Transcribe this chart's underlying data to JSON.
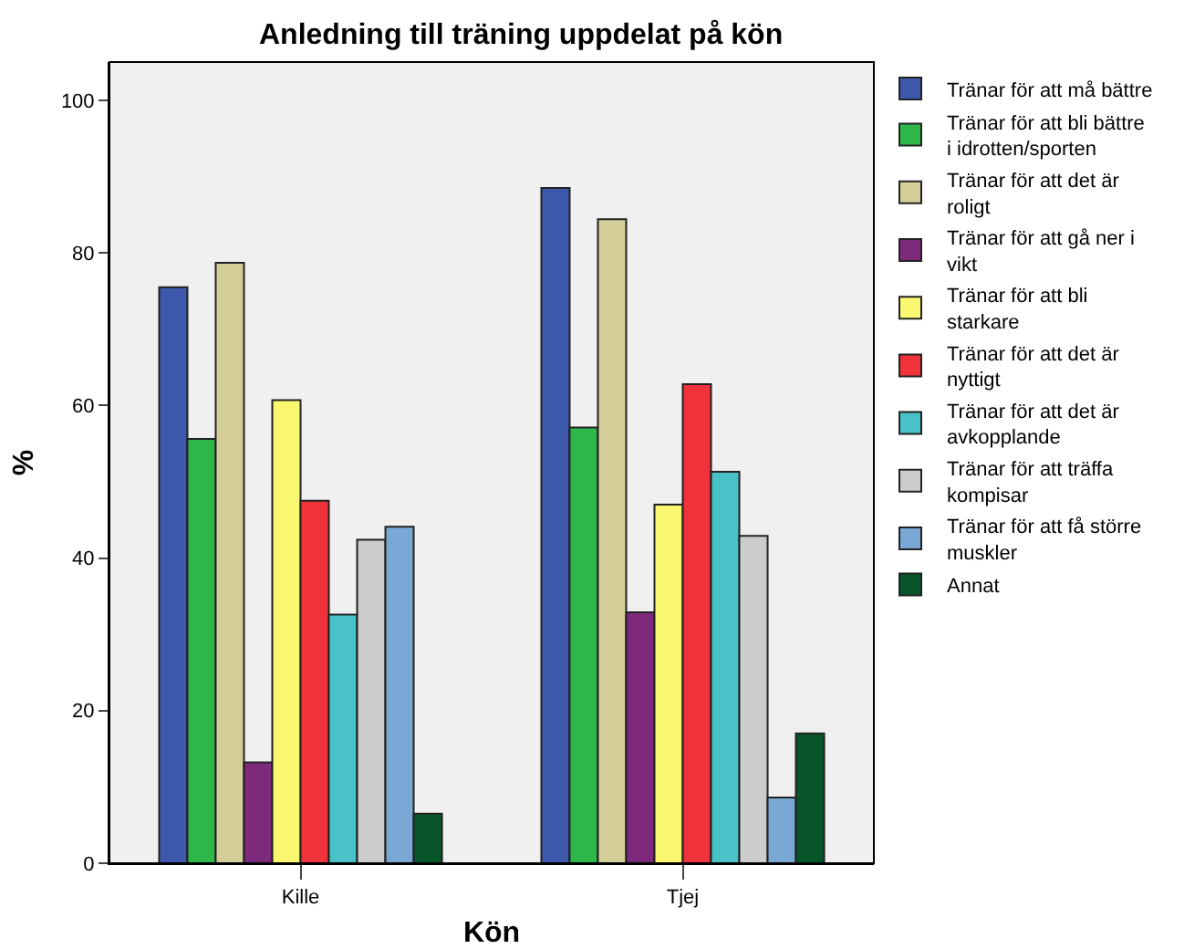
{
  "chart_data": {
    "type": "bar",
    "title": "Anledning till träning uppdelat på kön",
    "xlabel": "Kön",
    "ylabel": "%",
    "categories": [
      "Kille",
      "Tjej"
    ],
    "ylim": [
      0,
      105
    ],
    "yticks": [
      0,
      20,
      40,
      60,
      80,
      100
    ],
    "grid": false,
    "legend": "right",
    "series": [
      {
        "name": "Tränar för att må bättre",
        "color": "#3e58ac",
        "values": [
          75.5,
          88.5
        ]
      },
      {
        "name": "Tränar för att bli bättre i idrotten/sporten",
        "color": "#2fb84a",
        "values": [
          55.6,
          57.1
        ]
      },
      {
        "name": "Tränar för att det är roligt",
        "color": "#d4cf98",
        "values": [
          78.7,
          84.4
        ]
      },
      {
        "name": "Tränar för att gå ner i vikt",
        "color": "#7d2a7d",
        "values": [
          13.2,
          32.9
        ]
      },
      {
        "name": "Tränar för att bli starkare",
        "color": "#faf870",
        "values": [
          60.7,
          47.0
        ]
      },
      {
        "name": "Tränar för att det är nyttigt",
        "color": "#f0323a",
        "values": [
          47.5,
          62.8
        ]
      },
      {
        "name": "Tränar för att det är avkopplande",
        "color": "#48c2c6",
        "values": [
          32.6,
          51.3
        ]
      },
      {
        "name": "Tränar för att träffa kompisar",
        "color": "#cccccc",
        "values": [
          42.4,
          42.9
        ]
      },
      {
        "name": "Tränar för att få större muskler",
        "color": "#7aa8d4",
        "values": [
          44.1,
          8.6
        ]
      },
      {
        "name": "Annat",
        "color": "#08552a",
        "values": [
          6.5,
          17.0
        ]
      }
    ]
  }
}
